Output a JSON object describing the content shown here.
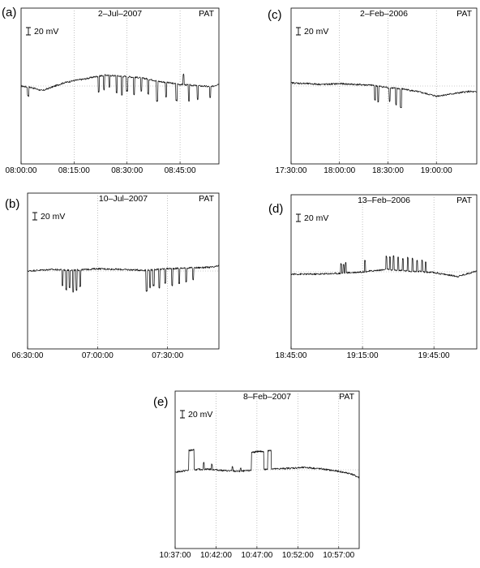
{
  "figure": {
    "station": "PAT",
    "scale_label": "20 mV"
  },
  "chart_data": [
    {
      "type": "line",
      "panel_label": "(a)",
      "title": "2–Jul–2007",
      "station": "PAT",
      "scale_bar": "20 mV",
      "xlabel": "",
      "ylabel": "",
      "x_ticks": [
        "08:00:00",
        "08:15:00",
        "08:30:00",
        "08:45:00"
      ],
      "x_range": [
        "08:00:00",
        "08:56:00"
      ],
      "y_range": [
        -100,
        100
      ],
      "grid": "vertical dotted lines at major ticks; dotted horizontal reference line",
      "series": [
        {
          "x": [
            "08:00:00",
            "08:03:00",
            "08:06:00",
            "08:09:00",
            "08:12:00",
            "08:15:00",
            "08:18:00",
            "08:21:00",
            "08:24:00",
            "08:27:00",
            "08:30:00",
            "08:33:00",
            "08:36:00",
            "08:39:00",
            "08:42:00",
            "08:45:00",
            "08:48:00",
            "08:51:00",
            "08:54:00",
            "08:56:00"
          ],
          "y": [
            0,
            -2,
            -6,
            -1,
            4,
            7,
            9,
            12,
            14,
            13,
            12,
            11,
            9,
            6,
            4,
            2,
            1,
            0,
            -1,
            3
          ],
          "spikes": [
            {
              "t": "08:02:00",
              "dy": -11
            },
            {
              "t": "08:22:00",
              "dy": -20
            },
            {
              "t": "08:23:30",
              "dy": -18
            },
            {
              "t": "08:25:00",
              "dy": -15
            },
            {
              "t": "08:27:00",
              "dy": -21
            },
            {
              "t": "08:28:30",
              "dy": -24
            },
            {
              "t": "08:30:00",
              "dy": -18
            },
            {
              "t": "08:32:00",
              "dy": -22
            },
            {
              "t": "08:34:00",
              "dy": -17
            },
            {
              "t": "08:36:00",
              "dy": -19
            },
            {
              "t": "08:38:30",
              "dy": -26
            },
            {
              "t": "08:41:00",
              "dy": -18
            },
            {
              "t": "08:44:00",
              "dy": -21
            },
            {
              "t": "08:46:00",
              "dy": 13
            },
            {
              "t": "08:47:30",
              "dy": -20
            },
            {
              "t": "08:50:00",
              "dy": -17
            },
            {
              "t": "08:53:30",
              "dy": -14
            }
          ]
        }
      ]
    },
    {
      "type": "line",
      "panel_label": "(b)",
      "title": "10–Jul–2007",
      "station": "PAT",
      "scale_bar": "20 mV",
      "xlabel": "",
      "ylabel": "",
      "x_ticks": [
        "06:30:00",
        "07:00:00",
        "07:30:00"
      ],
      "x_range": [
        "06:30:00",
        "07:52:00"
      ],
      "y_range": [
        -100,
        100
      ],
      "grid": "vertical dotted lines at major ticks; dotted horizontal reference line",
      "series": [
        {
          "x": [
            "06:30:00",
            "06:40:00",
            "06:50:00",
            "07:00:00",
            "07:10:00",
            "07:20:00",
            "07:30:00",
            "07:40:00",
            "07:50:00",
            "07:52:00"
          ],
          "y": [
            0,
            2,
            1,
            3,
            2,
            1,
            3,
            4,
            5,
            7
          ],
          "spikes": [
            {
              "t": "06:45:00",
              "dy": -20
            },
            {
              "t": "06:46:30",
              "dy": -25
            },
            {
              "t": "06:48:00",
              "dy": -22
            },
            {
              "t": "06:49:30",
              "dy": -28
            },
            {
              "t": "06:51:00",
              "dy": -26
            },
            {
              "t": "06:52:30",
              "dy": -21
            },
            {
              "t": "07:21:00",
              "dy": -27
            },
            {
              "t": "07:22:30",
              "dy": -23
            },
            {
              "t": "07:24:00",
              "dy": -20
            },
            {
              "t": "07:26:30",
              "dy": -24
            },
            {
              "t": "07:29:00",
              "dy": -18
            },
            {
              "t": "07:32:00",
              "dy": -22
            },
            {
              "t": "07:35:00",
              "dy": -19
            },
            {
              "t": "07:38:00",
              "dy": -17
            },
            {
              "t": "07:41:00",
              "dy": -15
            }
          ]
        }
      ]
    },
    {
      "type": "line",
      "panel_label": "(c)",
      "title": "2–Feb–2006",
      "station": "PAT",
      "scale_bar": "20 mV",
      "xlabel": "",
      "ylabel": "",
      "x_ticks": [
        "17:30:00",
        "18:00:00",
        "18:30:00",
        "19:00:00"
      ],
      "x_range": [
        "17:30:00",
        "19:25:00"
      ],
      "y_range": [
        -100,
        100
      ],
      "grid": "vertical dotted lines at major ticks; dotted horizontal reference line",
      "series": [
        {
          "x": [
            "17:30:00",
            "17:40:00",
            "17:50:00",
            "18:00:00",
            "18:10:00",
            "18:20:00",
            "18:30:00",
            "18:40:00",
            "18:50:00",
            "19:00:00",
            "19:10:00",
            "19:20:00",
            "19:25:00"
          ],
          "y": [
            4,
            3,
            2,
            3,
            2,
            1,
            -2,
            -4,
            -8,
            -13,
            -10,
            -7,
            -8
          ],
          "spikes": [
            {
              "t": "18:22:00",
              "dy": -18
            },
            {
              "t": "18:24:00",
              "dy": -20
            },
            {
              "t": "18:31:00",
              "dy": -17
            },
            {
              "t": "18:35:00",
              "dy": -21
            },
            {
              "t": "18:38:00",
              "dy": -24
            }
          ]
        }
      ]
    },
    {
      "type": "line",
      "panel_label": "(d)",
      "title": "13–Feb–2006",
      "station": "PAT",
      "scale_bar": "20 mV",
      "xlabel": "",
      "ylabel": "",
      "x_ticks": [
        "18:45:00",
        "19:15:00",
        "19:45:00"
      ],
      "x_range": [
        "18:45:00",
        "20:03:00"
      ],
      "y_range": [
        -100,
        100
      ],
      "grid": "vertical dotted lines at major ticks; dotted horizontal reference line",
      "series": [
        {
          "x": [
            "18:45:00",
            "18:55:00",
            "19:05:00",
            "19:15:00",
            "19:25:00",
            "19:35:00",
            "19:45:00",
            "19:55:00",
            "20:03:00"
          ],
          "y": [
            -3,
            -3,
            -2,
            0,
            3,
            1,
            -1,
            -6,
            1
          ],
          "spikes": [
            {
              "t": "19:06:00",
              "dy": 12
            },
            {
              "t": "19:07:00",
              "dy": 11
            },
            {
              "t": "19:08:00",
              "dy": 13
            },
            {
              "t": "19:16:00",
              "dy": 14
            },
            {
              "t": "19:25:00",
              "dy": 17
            },
            {
              "t": "19:26:30",
              "dy": 16
            },
            {
              "t": "19:28:00",
              "dy": 18
            },
            {
              "t": "19:30:00",
              "dy": 17
            },
            {
              "t": "19:32:00",
              "dy": 15
            },
            {
              "t": "19:34:00",
              "dy": 17
            },
            {
              "t": "19:36:00",
              "dy": 16
            },
            {
              "t": "19:38:00",
              "dy": 14
            },
            {
              "t": "19:40:00",
              "dy": 15
            },
            {
              "t": "19:41:30",
              "dy": 13
            }
          ]
        }
      ]
    },
    {
      "type": "line",
      "panel_label": "(e)",
      "title": "8–Feb–2007",
      "station": "PAT",
      "scale_bar": "20 mV",
      "xlabel": "",
      "ylabel": "",
      "x_ticks": [
        "10:37:00",
        "10:42:00",
        "10:47:00",
        "10:52:00",
        "10:57:00"
      ],
      "x_range": [
        "10:37:00",
        "10:59:30"
      ],
      "y_range": [
        -100,
        100
      ],
      "grid": "vertical dotted lines at major ticks; dotted horizontal reference line",
      "series": [
        {
          "x": [
            "10:37:00",
            "10:39:00",
            "10:41:00",
            "10:43:00",
            "10:45:00",
            "10:47:00",
            "10:49:00",
            "10:51:00",
            "10:53:00",
            "10:55:00",
            "10:57:00",
            "10:58:30",
            "10:59:30"
          ],
          "y": [
            -3,
            0,
            1,
            -1,
            -2,
            0,
            1,
            2,
            3,
            1,
            -2,
            -5,
            -10
          ],
          "pulses": [
            {
              "start": "10:38:40",
              "end": "10:39:20",
              "dy": 25
            },
            {
              "start": "10:46:20",
              "end": "10:47:50",
              "dy": 23
            },
            {
              "start": "10:48:20",
              "end": "10:48:45",
              "dy": 24
            }
          ],
          "spikes": [
            {
              "t": "10:40:30",
              "dy": 8
            },
            {
              "t": "10:41:30",
              "dy": 6
            },
            {
              "t": "10:44:00",
              "dy": 5
            },
            {
              "t": "10:45:00",
              "dy": 4
            }
          ]
        }
      ]
    }
  ]
}
